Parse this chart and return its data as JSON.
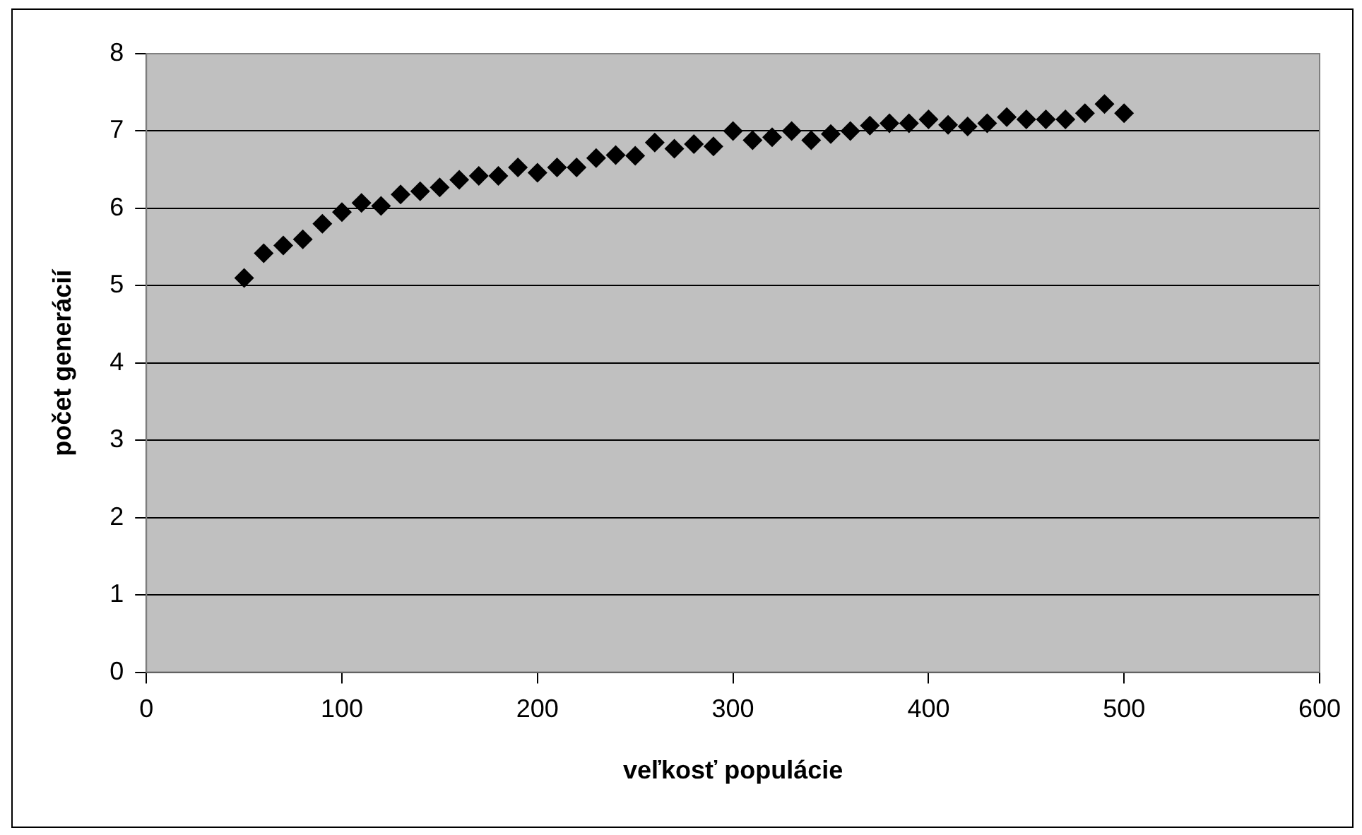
{
  "chart_data": {
    "type": "scatter",
    "xlabel": "veľkosť populácie",
    "ylabel": "počet generácií",
    "x": [
      50,
      60,
      70,
      80,
      90,
      100,
      110,
      120,
      130,
      140,
      150,
      160,
      170,
      180,
      190,
      200,
      210,
      220,
      230,
      240,
      250,
      260,
      270,
      280,
      290,
      300,
      310,
      320,
      330,
      340,
      350,
      360,
      370,
      380,
      390,
      400,
      410,
      420,
      430,
      440,
      450,
      460,
      470,
      480,
      490,
      500
    ],
    "series": [
      {
        "color": "#000000",
        "values": [
          5.1,
          5.42,
          5.52,
          5.6,
          5.8,
          5.95,
          6.07,
          6.03,
          6.18,
          6.22,
          6.27,
          6.37,
          6.42,
          6.42,
          6.53,
          6.46,
          6.53,
          6.53,
          6.65,
          6.69,
          6.68,
          6.85,
          6.77,
          6.83,
          6.8,
          7.0,
          6.88,
          6.92,
          7.0,
          6.88,
          6.96,
          7.0,
          7.07,
          7.1,
          7.1,
          7.15,
          7.08,
          7.06,
          7.1,
          7.18,
          7.15,
          7.15,
          7.15,
          7.23,
          7.35,
          7.23
        ]
      }
    ],
    "xlim": [
      0,
      600
    ],
    "xticks": [
      0,
      100,
      200,
      300,
      400,
      500,
      600
    ],
    "ylim": [
      0,
      8
    ],
    "yticks": [
      0,
      1,
      2,
      3,
      4,
      5,
      6,
      7,
      8
    ],
    "grid": "y",
    "legend": false,
    "marker": "diamond"
  }
}
